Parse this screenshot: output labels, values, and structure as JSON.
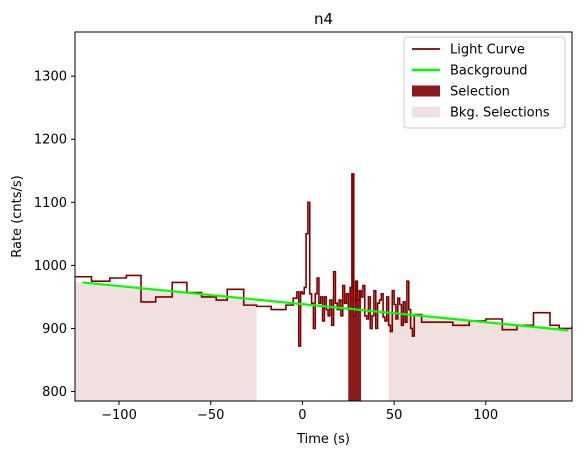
{
  "chart_data": {
    "type": "line",
    "title": "n4",
    "xlabel": "Time (s)",
    "ylabel": "Rate (cnts/s)",
    "xlim": [
      -124,
      147
    ],
    "ylim": [
      785,
      1370
    ],
    "xticks": [
      -100,
      -50,
      0,
      50,
      100
    ],
    "xtick_labels": [
      "−100",
      "−50",
      "0",
      "50",
      "100"
    ],
    "yticks": [
      800,
      900,
      1000,
      1100,
      1200,
      1300
    ],
    "ytick_labels": [
      "800",
      "900",
      "1000",
      "1100",
      "1200",
      "1300"
    ],
    "legend_position": "top-right",
    "legend": [
      {
        "label": "Light Curve",
        "kind": "line",
        "color": "#800000"
      },
      {
        "label": "Background",
        "kind": "line",
        "color": "#00ff00"
      },
      {
        "label": "Selection",
        "kind": "patch",
        "color": "#8b1a1a"
      },
      {
        "label": "Bkg. Selections",
        "kind": "patch",
        "color": "#f0e0e0"
      }
    ],
    "background": {
      "x": [
        -120,
        145
      ],
      "y": [
        973,
        897
      ]
    },
    "selection": {
      "x": [
        25,
        32
      ]
    },
    "bkg_selections": [
      {
        "x": [
          -124,
          -25
        ]
      },
      {
        "x": [
          47,
          147
        ]
      }
    ],
    "light_curve": {
      "x": [
        -124,
        -115,
        -105,
        -96,
        -88,
        -80,
        -71,
        -63,
        -55,
        -47,
        -41,
        -32,
        -25,
        -17,
        -9,
        -5,
        -3,
        -2,
        -1,
        0,
        1,
        2,
        3,
        4,
        5,
        6,
        7,
        8,
        9,
        10,
        11,
        12,
        13,
        14,
        15,
        16,
        17,
        18,
        19,
        20,
        21,
        22,
        23,
        24,
        25,
        26,
        27,
        28,
        29,
        30,
        31,
        32,
        33,
        34,
        35,
        36,
        37,
        38,
        39,
        40,
        41,
        42,
        43,
        44,
        45,
        46,
        47,
        48,
        49,
        50,
        51,
        52,
        53,
        54,
        55,
        56,
        57,
        58,
        59,
        60,
        61,
        65,
        73,
        82,
        91,
        100,
        109,
        117,
        126,
        135,
        140,
        147
      ],
      "y": [
        982,
        975,
        980,
        984,
        942,
        950,
        973,
        957,
        950,
        945,
        962,
        937,
        935,
        930,
        937,
        948,
        958,
        872,
        958,
        955,
        965,
        1050,
        1100,
        955,
        940,
        900,
        955,
        980,
        940,
        950,
        912,
        950,
        930,
        920,
        945,
        905,
        990,
        940,
        930,
        945,
        920,
        968,
        940,
        955,
        930,
        965,
        1145,
        920,
        975,
        945,
        960,
        950,
        968,
        920,
        915,
        950,
        900,
        920,
        960,
        900,
        940,
        945,
        955,
        918,
        912,
        950,
        905,
        895,
        960,
        938,
        915,
        948,
        938,
        905,
        942,
        910,
        975,
        930,
        900,
        888,
        922,
        910,
        910,
        905,
        912,
        915,
        898,
        905,
        925,
        905,
        900,
        904
      ]
    }
  }
}
